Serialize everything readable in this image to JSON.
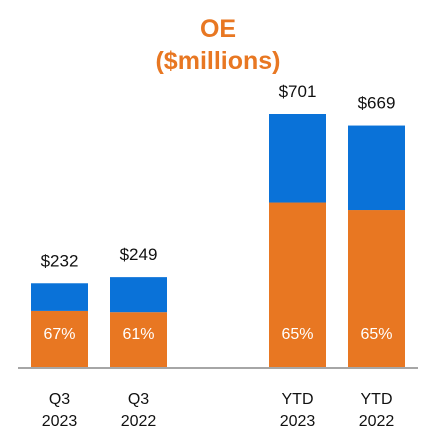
{
  "colors": {
    "title": "#E87722",
    "bottom_segment": "#E87722",
    "top_segment": "#0A72D8",
    "axis": "#888888"
  },
  "chart_data": {
    "type": "bar",
    "stacked": true,
    "title_lines": [
      "OE",
      "($millions)"
    ],
    "categories": [
      [
        "Q3",
        "2023"
      ],
      [
        "Q3",
        "2022"
      ],
      [
        "YTD",
        "2023"
      ],
      [
        "YTD",
        "2022"
      ]
    ],
    "totals": [
      232,
      249,
      701,
      669
    ],
    "total_labels": [
      "$232",
      "$249",
      "$701",
      "$669"
    ],
    "bottom_share_labels": [
      "67%",
      "61%",
      "65%",
      "65%"
    ],
    "series": [
      {
        "values": [
          155.4,
          151.9,
          455.7,
          434.9
        ]
      },
      {
        "values": [
          76.6,
          97.1,
          245.3,
          234.1
        ]
      }
    ],
    "xlabel": "",
    "ylabel": "",
    "grid": false,
    "legend": "none"
  }
}
